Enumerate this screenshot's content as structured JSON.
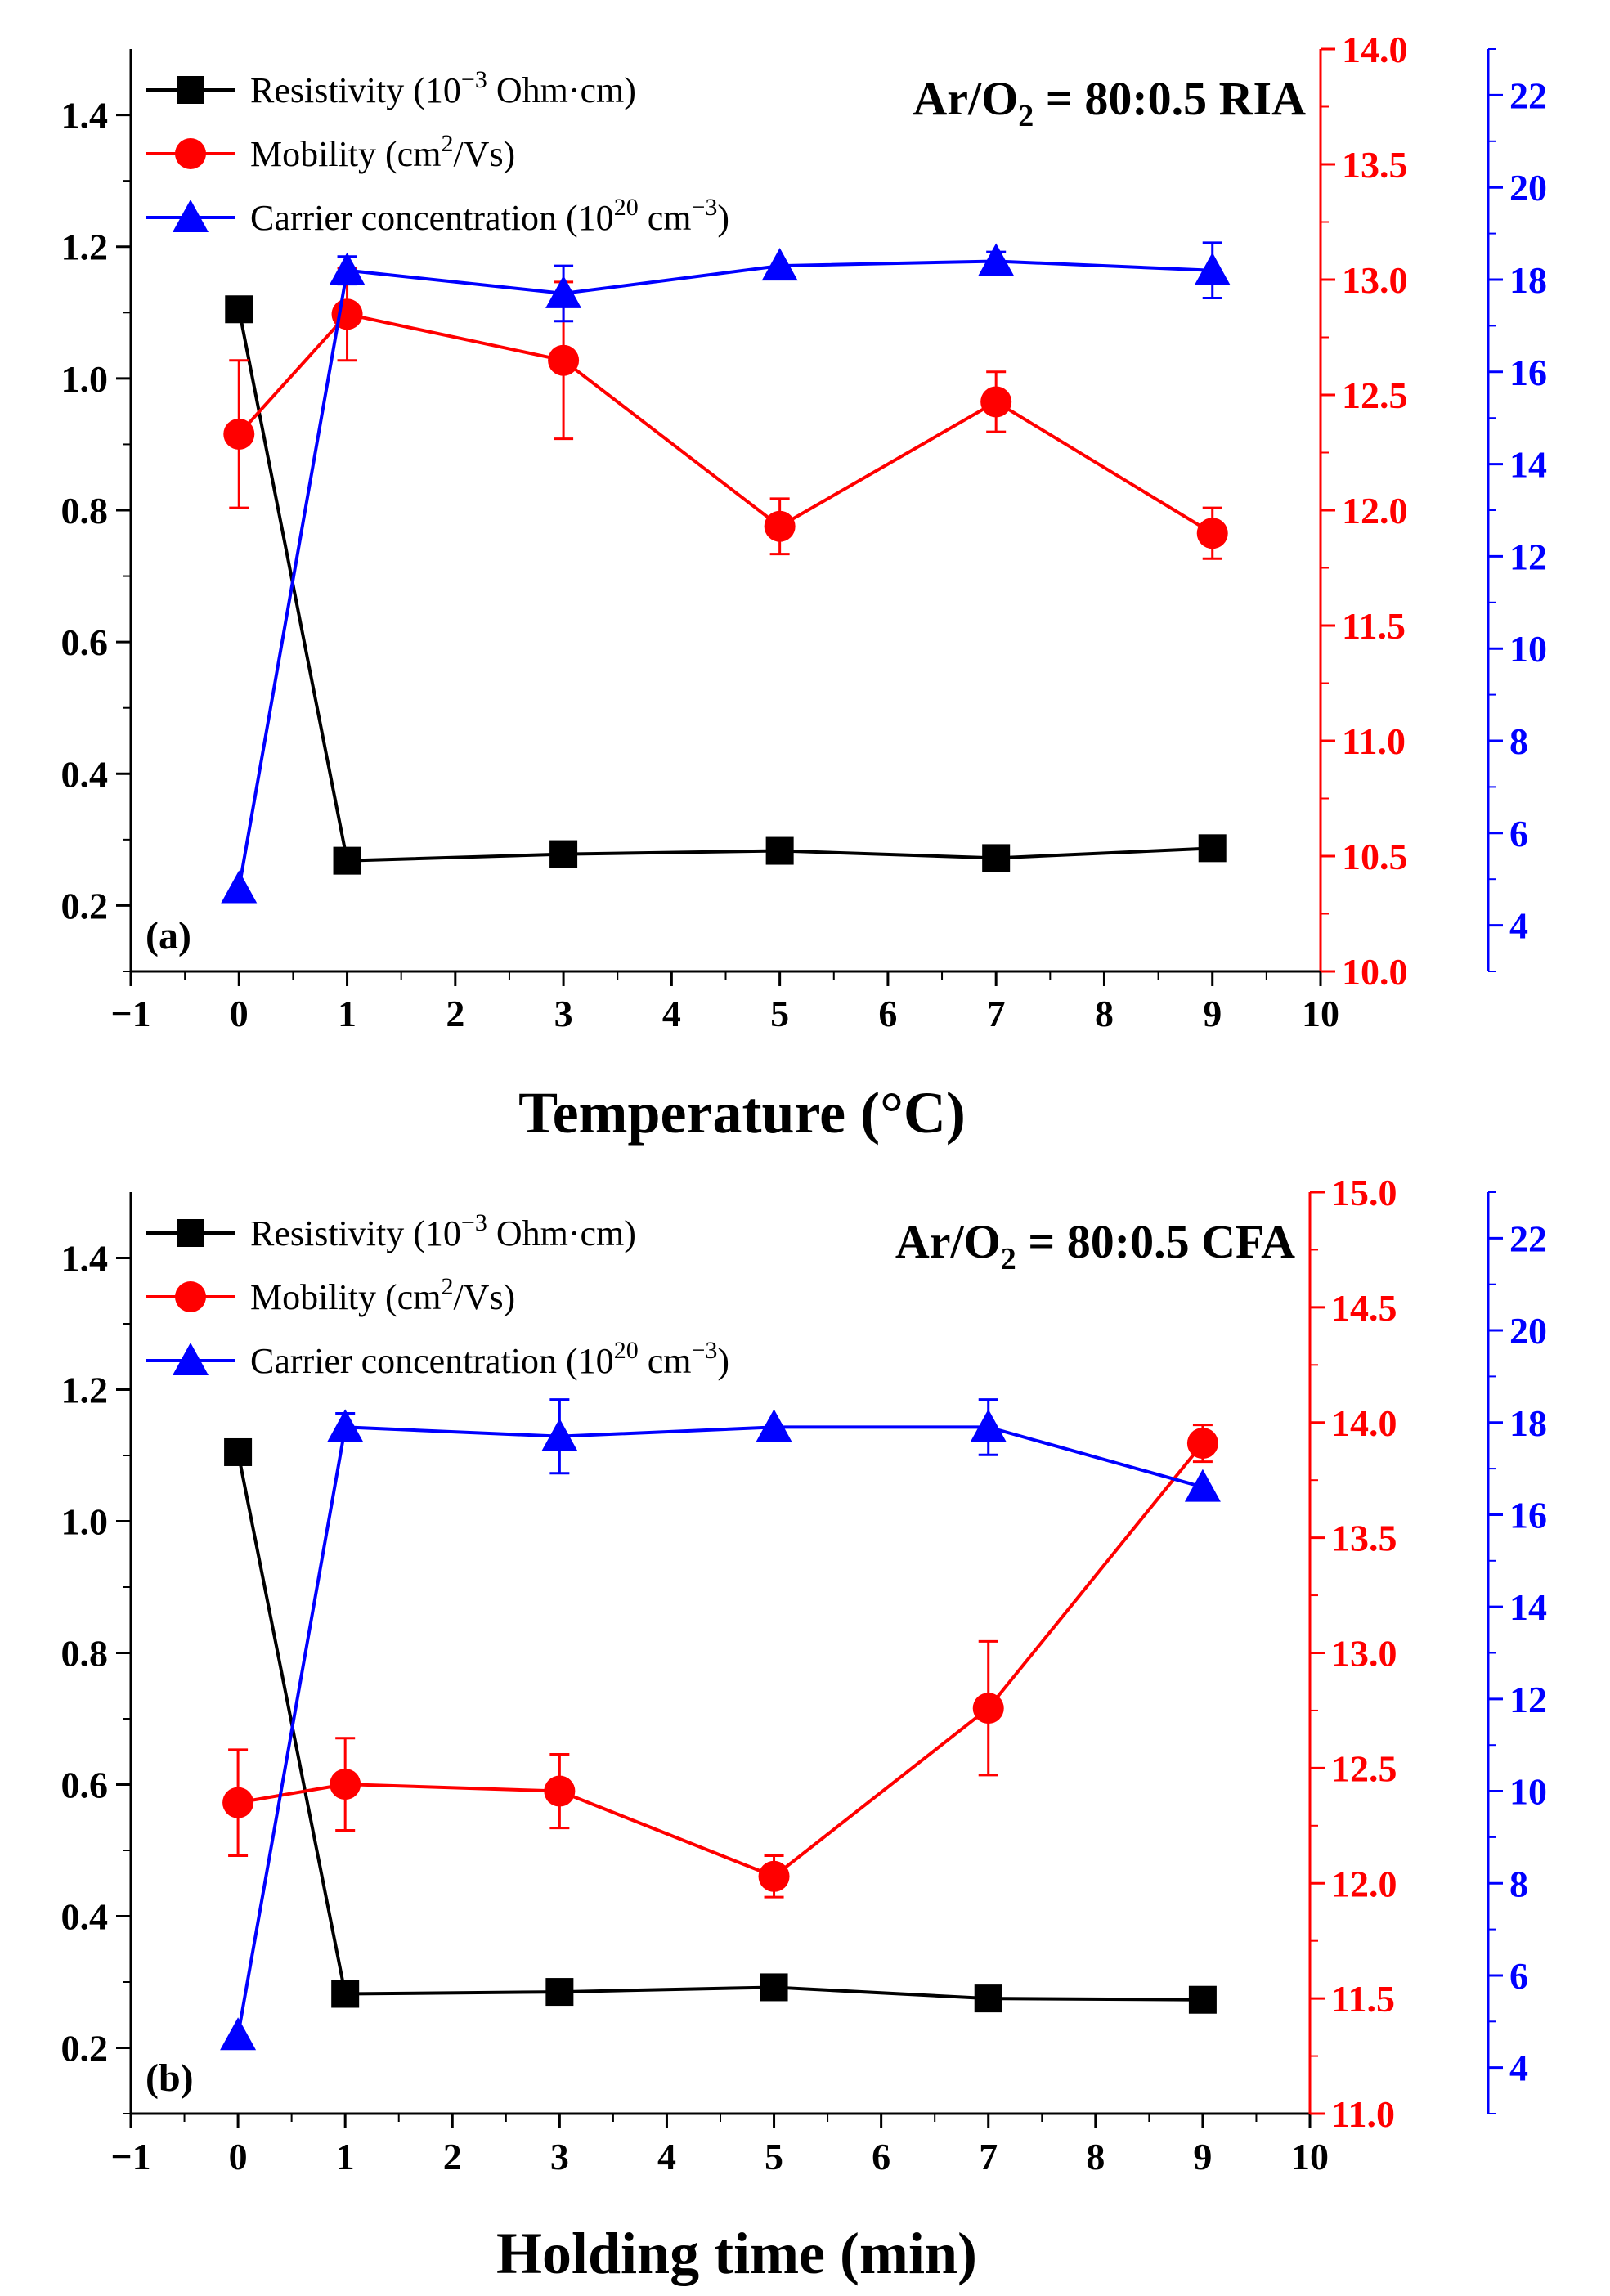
{
  "colors": {
    "resistivity": "#000000",
    "mobility": "#ff0000",
    "carrier": "#0000ff",
    "axis": "#000000"
  },
  "chart_data": [
    {
      "type": "line",
      "panel_label": "(a)",
      "title_parts": {
        "pre": "Ar/O",
        "sub": "2",
        "post": " = 80:0.5  RIA"
      },
      "xlabel": "Temperature (°C)",
      "x_ticks": [
        "−1",
        "0",
        "1",
        "2",
        "3",
        "4",
        "5",
        "6",
        "7",
        "8",
        "9",
        "10"
      ],
      "xlim": [
        -1,
        10
      ],
      "y_left": {
        "lim": [
          0.1,
          1.5
        ],
        "ticks": [
          "0.2",
          "0.4",
          "0.6",
          "0.8",
          "1.0",
          "1.2",
          "1.4"
        ]
      },
      "y_right_red": {
        "lim": [
          10.0,
          14.0
        ],
        "ticks": [
          "10.0",
          "10.5",
          "11.0",
          "11.5",
          "12.0",
          "12.5",
          "13.0",
          "13.5",
          "14.0"
        ]
      },
      "y_right_blue": {
        "lim": [
          3,
          23
        ],
        "ticks": [
          "4",
          "6",
          "8",
          "10",
          "12",
          "14",
          "16",
          "18",
          "20",
          "22"
        ]
      },
      "x": [
        0,
        1,
        3,
        5,
        7,
        9
      ],
      "legend": [
        {
          "key": "resistivity",
          "pre": "Resistivity (10",
          "sup": "−3",
          "post": " Ohm·cm)"
        },
        {
          "key": "mobility",
          "pre": "Mobility (cm",
          "sup": "2",
          "post": "/Vs)"
        },
        {
          "key": "carrier",
          "pre": "Carrier concentration (10",
          "sup": "20",
          "post": " cm",
          "sup2": "−3",
          "post2": ")"
        }
      ],
      "series": [
        {
          "key": "resistivity",
          "name": "Resistivity (10−3 Ohm·cm)",
          "axis": "left",
          "marker": "square",
          "values": [
            1.105,
            0.268,
            0.278,
            0.283,
            0.272,
            0.287
          ]
        },
        {
          "key": "mobility",
          "name": "Mobility (cm2/Vs)",
          "axis": "red",
          "marker": "circle",
          "values": [
            12.33,
            12.85,
            12.65,
            11.93,
            12.47,
            11.9
          ],
          "errors": [
            0.32,
            0.2,
            0.34,
            0.12,
            0.13,
            0.11
          ]
        },
        {
          "key": "carrier",
          "name": "Carrier concentration (1020 cm−3)",
          "axis": "blue",
          "marker": "triangle",
          "values": [
            4.8,
            18.2,
            17.7,
            18.3,
            18.4,
            18.2
          ],
          "errors": [
            0,
            0.3,
            0.6,
            0,
            0.2,
            0.6
          ]
        }
      ]
    },
    {
      "type": "line",
      "panel_label": "(b)",
      "title_parts": {
        "pre": "Ar/O",
        "sub": "2",
        "post": " = 80:0.5  CFA"
      },
      "xlabel": "Holding time (min)",
      "x_ticks": [
        "−1",
        "0",
        "1",
        "2",
        "3",
        "4",
        "5",
        "6",
        "7",
        "8",
        "9",
        "10"
      ],
      "xlim": [
        -1,
        10
      ],
      "y_left": {
        "lim": [
          0.1,
          1.5
        ],
        "ticks": [
          "0.2",
          "0.4",
          "0.6",
          "0.8",
          "1.0",
          "1.2",
          "1.4"
        ]
      },
      "y_right_red": {
        "lim": [
          11.0,
          15.0
        ],
        "ticks": [
          "11.0",
          "11.5",
          "12.0",
          "12.5",
          "13.0",
          "13.5",
          "14.0",
          "14.5",
          "15.0"
        ]
      },
      "y_right_blue": {
        "lim": [
          3,
          23
        ],
        "ticks": [
          "4",
          "6",
          "8",
          "10",
          "12",
          "14",
          "16",
          "18",
          "20",
          "22"
        ]
      },
      "x": [
        0,
        1,
        3,
        5,
        7,
        9
      ],
      "legend": [
        {
          "key": "resistivity",
          "pre": "Resistivity (10",
          "sup": "−3",
          "post": " Ohm·cm)"
        },
        {
          "key": "mobility",
          "pre": "Mobility (cm",
          "sup": "2",
          "post": "/Vs)"
        },
        {
          "key": "carrier",
          "pre": "Carrier concentration (10",
          "sup": "20",
          "post": " cm",
          "sup2": "−3",
          "post2": ")"
        }
      ],
      "series": [
        {
          "key": "resistivity",
          "name": "Resistivity (10−3 Ohm·cm)",
          "axis": "left",
          "marker": "square",
          "values": [
            1.105,
            0.282,
            0.285,
            0.292,
            0.275,
            0.273
          ]
        },
        {
          "key": "mobility",
          "name": "Mobility (cm2/Vs)",
          "axis": "red",
          "marker": "circle",
          "values": [
            12.35,
            12.43,
            12.4,
            12.03,
            12.76,
            13.91
          ],
          "errors": [
            0.23,
            0.2,
            0.16,
            0.09,
            0.29,
            0.08
          ]
        },
        {
          "key": "carrier",
          "name": "Carrier concentration (1020 cm−3)",
          "axis": "blue",
          "marker": "triangle",
          "values": [
            4.7,
            17.9,
            17.7,
            17.9,
            17.9,
            16.6
          ],
          "errors": [
            0,
            0.3,
            0.8,
            0,
            0.6,
            0
          ]
        }
      ]
    }
  ]
}
